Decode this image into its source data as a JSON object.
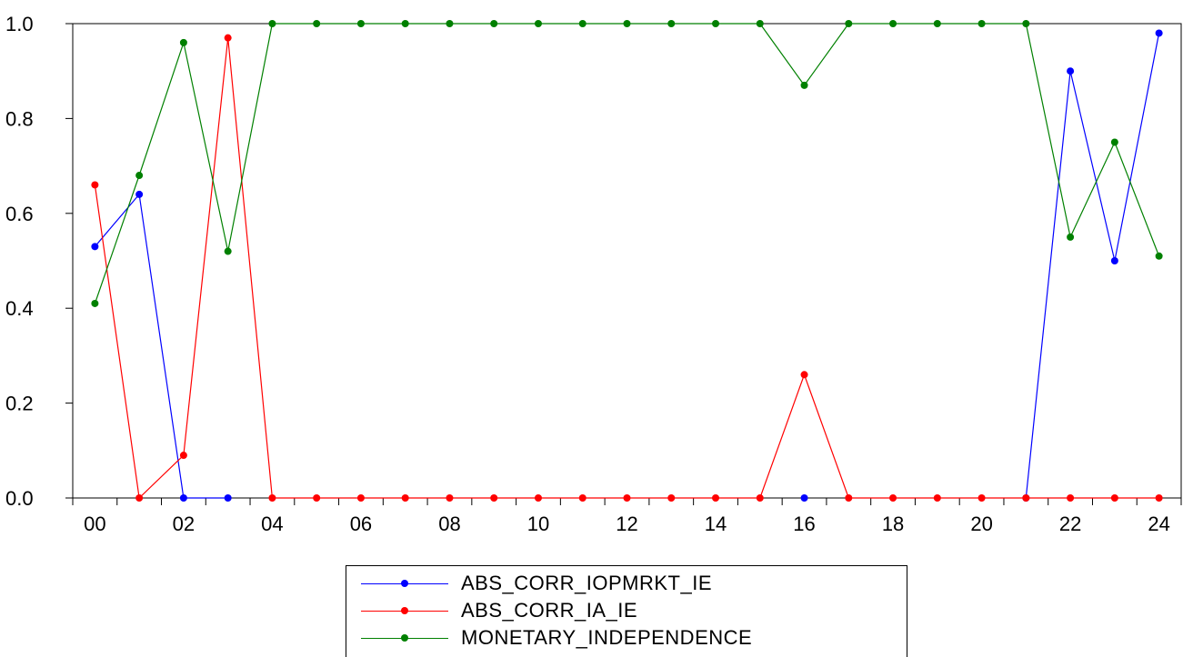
{
  "chart_data": {
    "type": "line",
    "x": [
      "00",
      "01",
      "02",
      "03",
      "04",
      "05",
      "06",
      "07",
      "08",
      "09",
      "10",
      "11",
      "12",
      "13",
      "14",
      "15",
      "16",
      "17",
      "18",
      "19",
      "20",
      "21",
      "22",
      "23",
      "24"
    ],
    "x_tick_labels": [
      "00",
      "02",
      "04",
      "06",
      "08",
      "10",
      "12",
      "14",
      "16",
      "18",
      "20",
      "22",
      "24"
    ],
    "y_tick_labels": [
      "0.0",
      "0.2",
      "0.4",
      "0.6",
      "0.8",
      "1.0"
    ],
    "ylim": [
      0.0,
      1.0
    ],
    "grid": false,
    "legend_placement": "bottom",
    "series": [
      {
        "name": "ABS_CORR_IOPMRKT_IE",
        "color": "#0000ff",
        "values": [
          0.53,
          0.64,
          0.0,
          0.0,
          null,
          null,
          null,
          null,
          null,
          null,
          null,
          null,
          null,
          null,
          null,
          null,
          0.0,
          null,
          null,
          null,
          null,
          0.0,
          0.9,
          0.5,
          0.98
        ]
      },
      {
        "name": "ABS_CORR_IA_IE",
        "color": "#ff0000",
        "values": [
          0.66,
          0.0,
          0.09,
          0.97,
          0.0,
          0.0,
          0.0,
          0.0,
          0.0,
          0.0,
          0.0,
          0.0,
          0.0,
          0.0,
          0.0,
          0.0,
          0.26,
          0.0,
          0.0,
          0.0,
          0.0,
          0.0,
          0.0,
          0.0,
          0.0
        ]
      },
      {
        "name": "MONETARY_INDEPENDENCE",
        "color": "#008000",
        "values": [
          0.41,
          0.68,
          0.96,
          0.52,
          1.0,
          1.0,
          1.0,
          1.0,
          1.0,
          1.0,
          1.0,
          1.0,
          1.0,
          1.0,
          1.0,
          1.0,
          0.87,
          1.0,
          1.0,
          1.0,
          1.0,
          1.0,
          0.55,
          0.75,
          0.51
        ]
      }
    ]
  }
}
